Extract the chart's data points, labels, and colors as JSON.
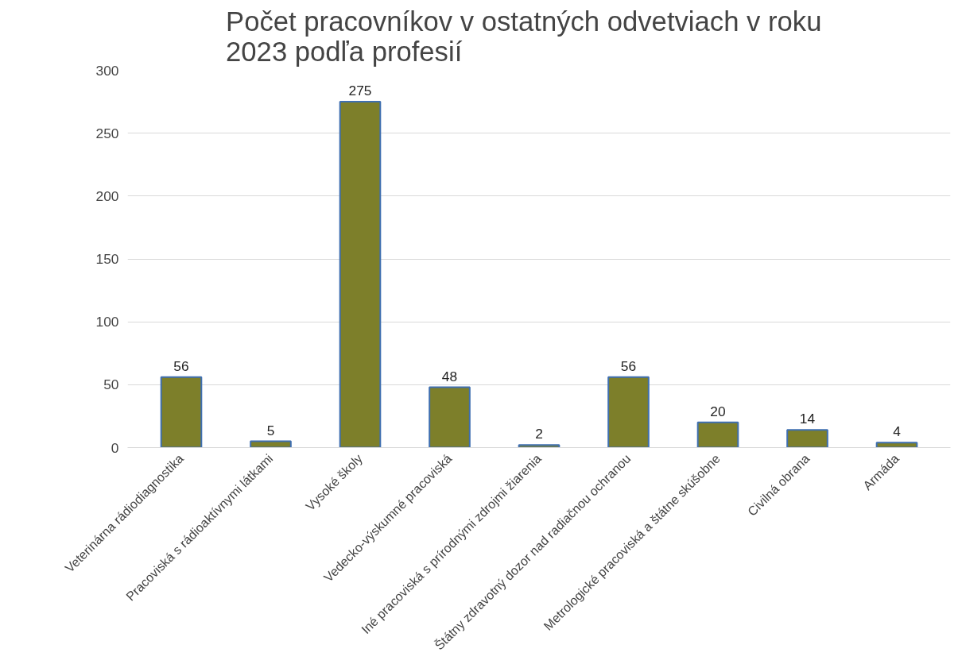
{
  "chart_data": {
    "type": "bar",
    "title": "Počet  pracovníkov  v ostatných  odvetviach  v roku\n2023 podľa  profesií",
    "categories": [
      "Veterinárna rádiodiagnostika",
      "Pracoviská s rádioaktívnymi látkami",
      "Vysoké školy",
      "Vedecko-výskumné pracoviská",
      "Iné pracoviská s prírodnými zdrojmi žiarenia",
      "Štátny zdravotný dozor nad radiačnou ochranou",
      "Metrologické pracoviská a štátne skúšobne",
      "Civilná obrana",
      "Armáda"
    ],
    "values": [
      56,
      5,
      275,
      48,
      2,
      56,
      20,
      14,
      4
    ],
    "color": "#7d7f2a",
    "ylim": [
      0,
      300
    ],
    "yticks": [
      0,
      50,
      100,
      150,
      200,
      250,
      300
    ],
    "grid": "y",
    "data_labels": true
  }
}
